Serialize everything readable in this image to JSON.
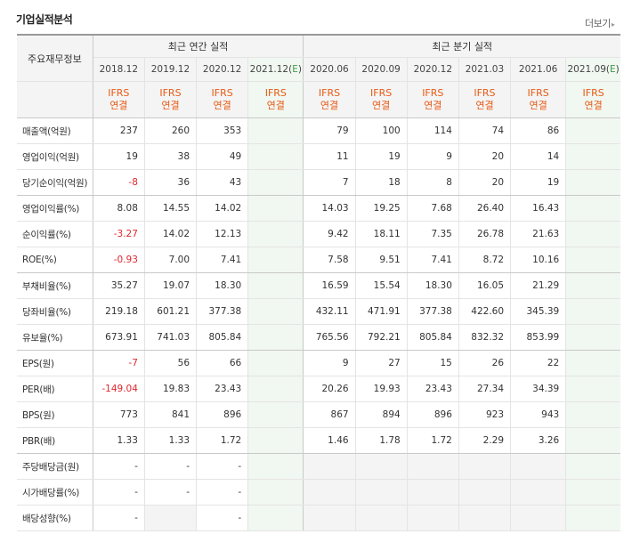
{
  "title": "기업실적분석",
  "more_label": "더보기",
  "row_header": "주요재무정보",
  "annual_header": "최근 연간 실적",
  "quarter_header": "최근 분기 실적",
  "annual_periods": [
    {
      "date": "2018.12",
      "e": ""
    },
    {
      "date": "2019.12",
      "e": ""
    },
    {
      "date": "2020.12",
      "e": ""
    },
    {
      "date": "2021.12(",
      "e": "E",
      "close": ")"
    }
  ],
  "quarter_periods": [
    {
      "date": "2020.06",
      "e": ""
    },
    {
      "date": "2020.09",
      "e": ""
    },
    {
      "date": "2020.12",
      "e": ""
    },
    {
      "date": "2021.03",
      "e": ""
    },
    {
      "date": "2021.06",
      "e": ""
    },
    {
      "date": "2021.09(",
      "e": "E",
      "close": ")"
    }
  ],
  "basis_line1": "IFRS",
  "basis_line2": "연결",
  "rows": [
    {
      "label": "매출액(억원)",
      "annual": [
        "237",
        "260",
        "353",
        ""
      ],
      "quarter": [
        "79",
        "100",
        "114",
        "74",
        "86",
        ""
      ]
    },
    {
      "label": "영업이익(억원)",
      "annual": [
        "19",
        "38",
        "49",
        ""
      ],
      "quarter": [
        "11",
        "19",
        "9",
        "20",
        "14",
        ""
      ]
    },
    {
      "label": "당기순이익(억원)",
      "annual": [
        "-8",
        "36",
        "43",
        ""
      ],
      "quarter": [
        "7",
        "18",
        "8",
        "20",
        "19",
        ""
      ]
    },
    {
      "label": "영업이익률(%)",
      "annual": [
        "8.08",
        "14.55",
        "14.02",
        ""
      ],
      "quarter": [
        "14.03",
        "19.25",
        "7.68",
        "26.40",
        "16.43",
        ""
      ]
    },
    {
      "label": "순이익률(%)",
      "annual": [
        "-3.27",
        "14.02",
        "12.13",
        ""
      ],
      "quarter": [
        "9.42",
        "18.11",
        "7.35",
        "26.78",
        "21.63",
        ""
      ]
    },
    {
      "label": "ROE(%)",
      "annual": [
        "-0.93",
        "7.00",
        "7.41",
        ""
      ],
      "quarter": [
        "7.58",
        "9.51",
        "7.41",
        "8.72",
        "10.16",
        ""
      ]
    },
    {
      "label": "부채비율(%)",
      "annual": [
        "35.27",
        "19.07",
        "18.30",
        ""
      ],
      "quarter": [
        "16.59",
        "15.54",
        "18.30",
        "16.05",
        "21.29",
        ""
      ]
    },
    {
      "label": "당좌비율(%)",
      "annual": [
        "219.18",
        "601.21",
        "377.38",
        ""
      ],
      "quarter": [
        "432.11",
        "471.91",
        "377.38",
        "422.60",
        "345.39",
        ""
      ]
    },
    {
      "label": "유보율(%)",
      "annual": [
        "673.91",
        "741.03",
        "805.84",
        ""
      ],
      "quarter": [
        "765.56",
        "792.21",
        "805.84",
        "832.32",
        "853.99",
        ""
      ]
    },
    {
      "label": "EPS(원)",
      "annual": [
        "-7",
        "56",
        "66",
        ""
      ],
      "quarter": [
        "9",
        "27",
        "15",
        "26",
        "22",
        ""
      ]
    },
    {
      "label": "PER(배)",
      "annual": [
        "-149.04",
        "19.83",
        "23.43",
        ""
      ],
      "quarter": [
        "20.26",
        "19.93",
        "23.43",
        "27.34",
        "34.39",
        ""
      ]
    },
    {
      "label": "BPS(원)",
      "annual": [
        "773",
        "841",
        "896",
        ""
      ],
      "quarter": [
        "867",
        "894",
        "896",
        "923",
        "943",
        ""
      ]
    },
    {
      "label": "PBR(배)",
      "annual": [
        "1.33",
        "1.33",
        "1.72",
        ""
      ],
      "quarter": [
        "1.46",
        "1.78",
        "1.72",
        "2.29",
        "3.26",
        ""
      ]
    },
    {
      "label": "주당배당금(원)",
      "annual": [
        "-",
        "-",
        "-",
        ""
      ],
      "quarter": [
        "",
        "",
        "",
        "",
        "",
        ""
      ]
    },
    {
      "label": "시가배당률(%)",
      "annual": [
        "-",
        "-",
        "-",
        ""
      ],
      "quarter": [
        "",
        "",
        "",
        "",
        "",
        ""
      ]
    },
    {
      "label": "배당성향(%)",
      "annual": [
        "-",
        "",
        "-",
        ""
      ],
      "quarter": [
        "",
        "",
        "",
        "",
        "",
        ""
      ]
    }
  ],
  "colors": {
    "negative": "#e0262d",
    "basis": "#e85a14",
    "estimate_bg": "#f1f7f1",
    "estimate_mark": "#3d9b4a",
    "header_bg": "#f4f4f4"
  }
}
